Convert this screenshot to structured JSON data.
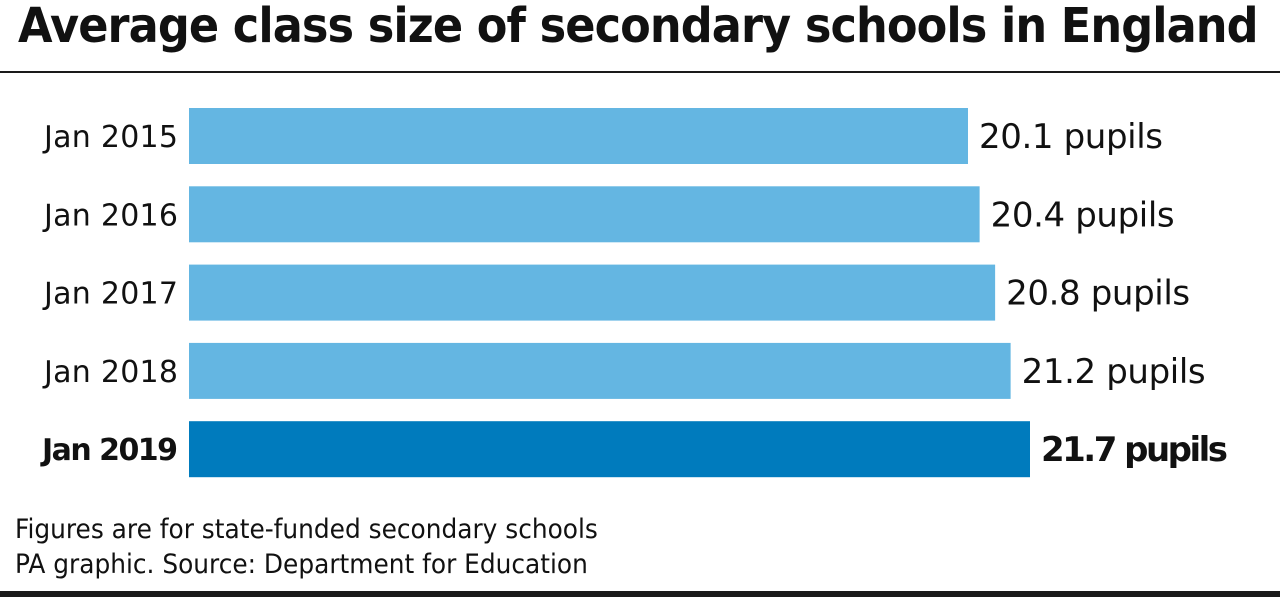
{
  "chart_data": {
    "type": "bar",
    "orientation": "horizontal",
    "title": "Average class size of secondary schools in England",
    "categories": [
      "Jan 2015",
      "Jan 2016",
      "Jan 2017",
      "Jan 2018",
      "Jan 2019"
    ],
    "values": [
      20.1,
      20.4,
      20.8,
      21.2,
      21.7
    ],
    "data_labels": [
      "20.1 pupils",
      "20.4 pupils",
      "20.8 pupils",
      "21.2 pupils",
      "21.7 pupils"
    ],
    "highlight_index": 4,
    "xlim": [
      0,
      21.7
    ],
    "grid": false,
    "colors": {
      "bar": "#64b6e2",
      "highlight": "#007bbd"
    }
  },
  "footnote": "Figures are for state-funded secondary schools",
  "source": "PA graphic. Source: Department for Education"
}
